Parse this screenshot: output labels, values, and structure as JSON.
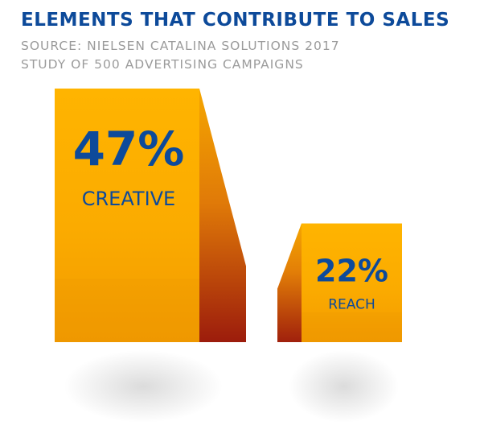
{
  "header": {
    "title": "ELEMENTS THAT CONTRIBUTE TO SALES",
    "source_line1": "SOURCE:  NIELSEN CATALINA SOLUTIONS 2017",
    "source_line2": "STUDY OF 500 ADVERTISING CAMPAIGNS"
  },
  "chart_data": {
    "type": "bar",
    "title": "ELEMENTS THAT CONTRIBUTE TO SALES",
    "categories": [
      "CREATIVE",
      "REACH"
    ],
    "values": [
      47,
      22
    ],
    "value_labels": [
      "47%",
      "22%"
    ],
    "unit": "%",
    "ylim": [
      0,
      47
    ],
    "grid": false,
    "legend": "none"
  },
  "colors": {
    "title": "#0d4a9a",
    "subtitle": "#9b9b9b",
    "bar_top": "#ffb300",
    "bar_mid": "#f8a100",
    "bar_side_light": "#f0a400",
    "bar_side_dark": "#9e1d0b",
    "label": "#0d4a9a"
  }
}
